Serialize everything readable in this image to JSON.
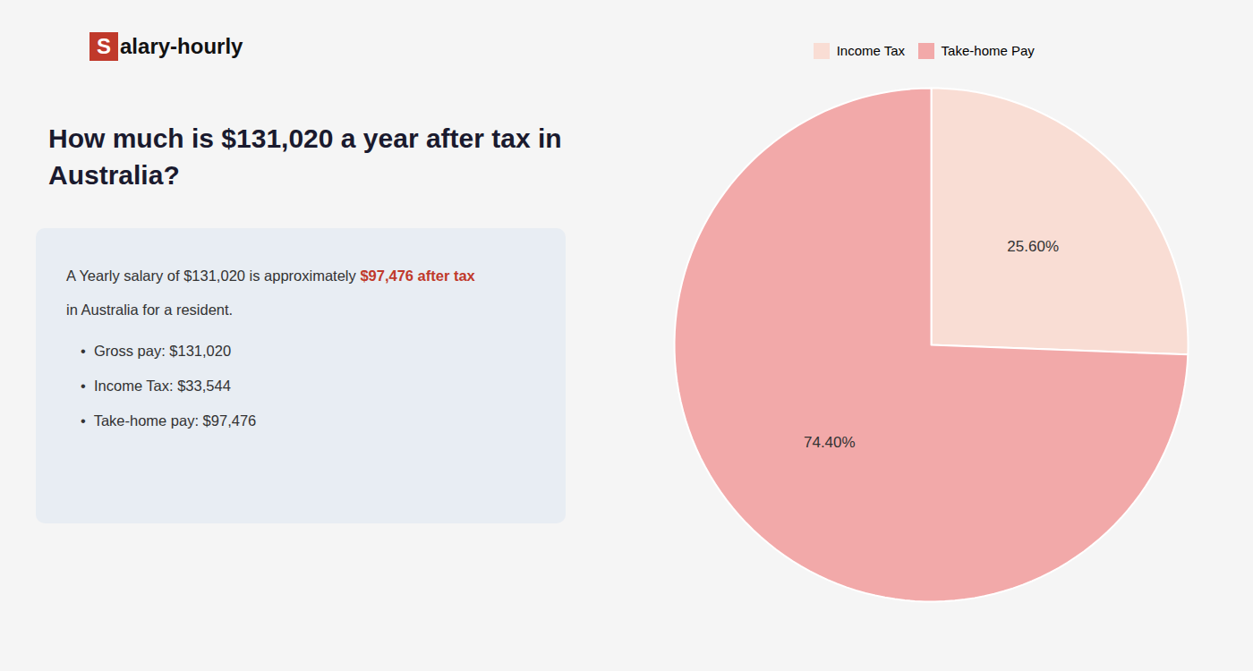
{
  "chart_data": {
    "type": "pie",
    "title": "How much is $131,020 a year after tax in\nAustralia?",
    "categories": [
      "Income Tax",
      "Take-home Pay"
    ],
    "values": [
      25.6,
      74.4
    ],
    "value_labels": [
      "25.60%",
      "74.40%"
    ],
    "colors": [
      "#f9ddd4",
      "#f2a9a9"
    ],
    "data_labels": true,
    "legend": "top",
    "annotations": [
      "S",
      "alary-hourly",
      "A Yearly salary of $131,020 is approximately",
      "$97,476 after tax",
      "in Australia for a resident.",
      "•  Gross pay: $131,020",
      "•  Income Tax: $33,544",
      "•  Take-home pay: $97,476"
    ]
  }
}
